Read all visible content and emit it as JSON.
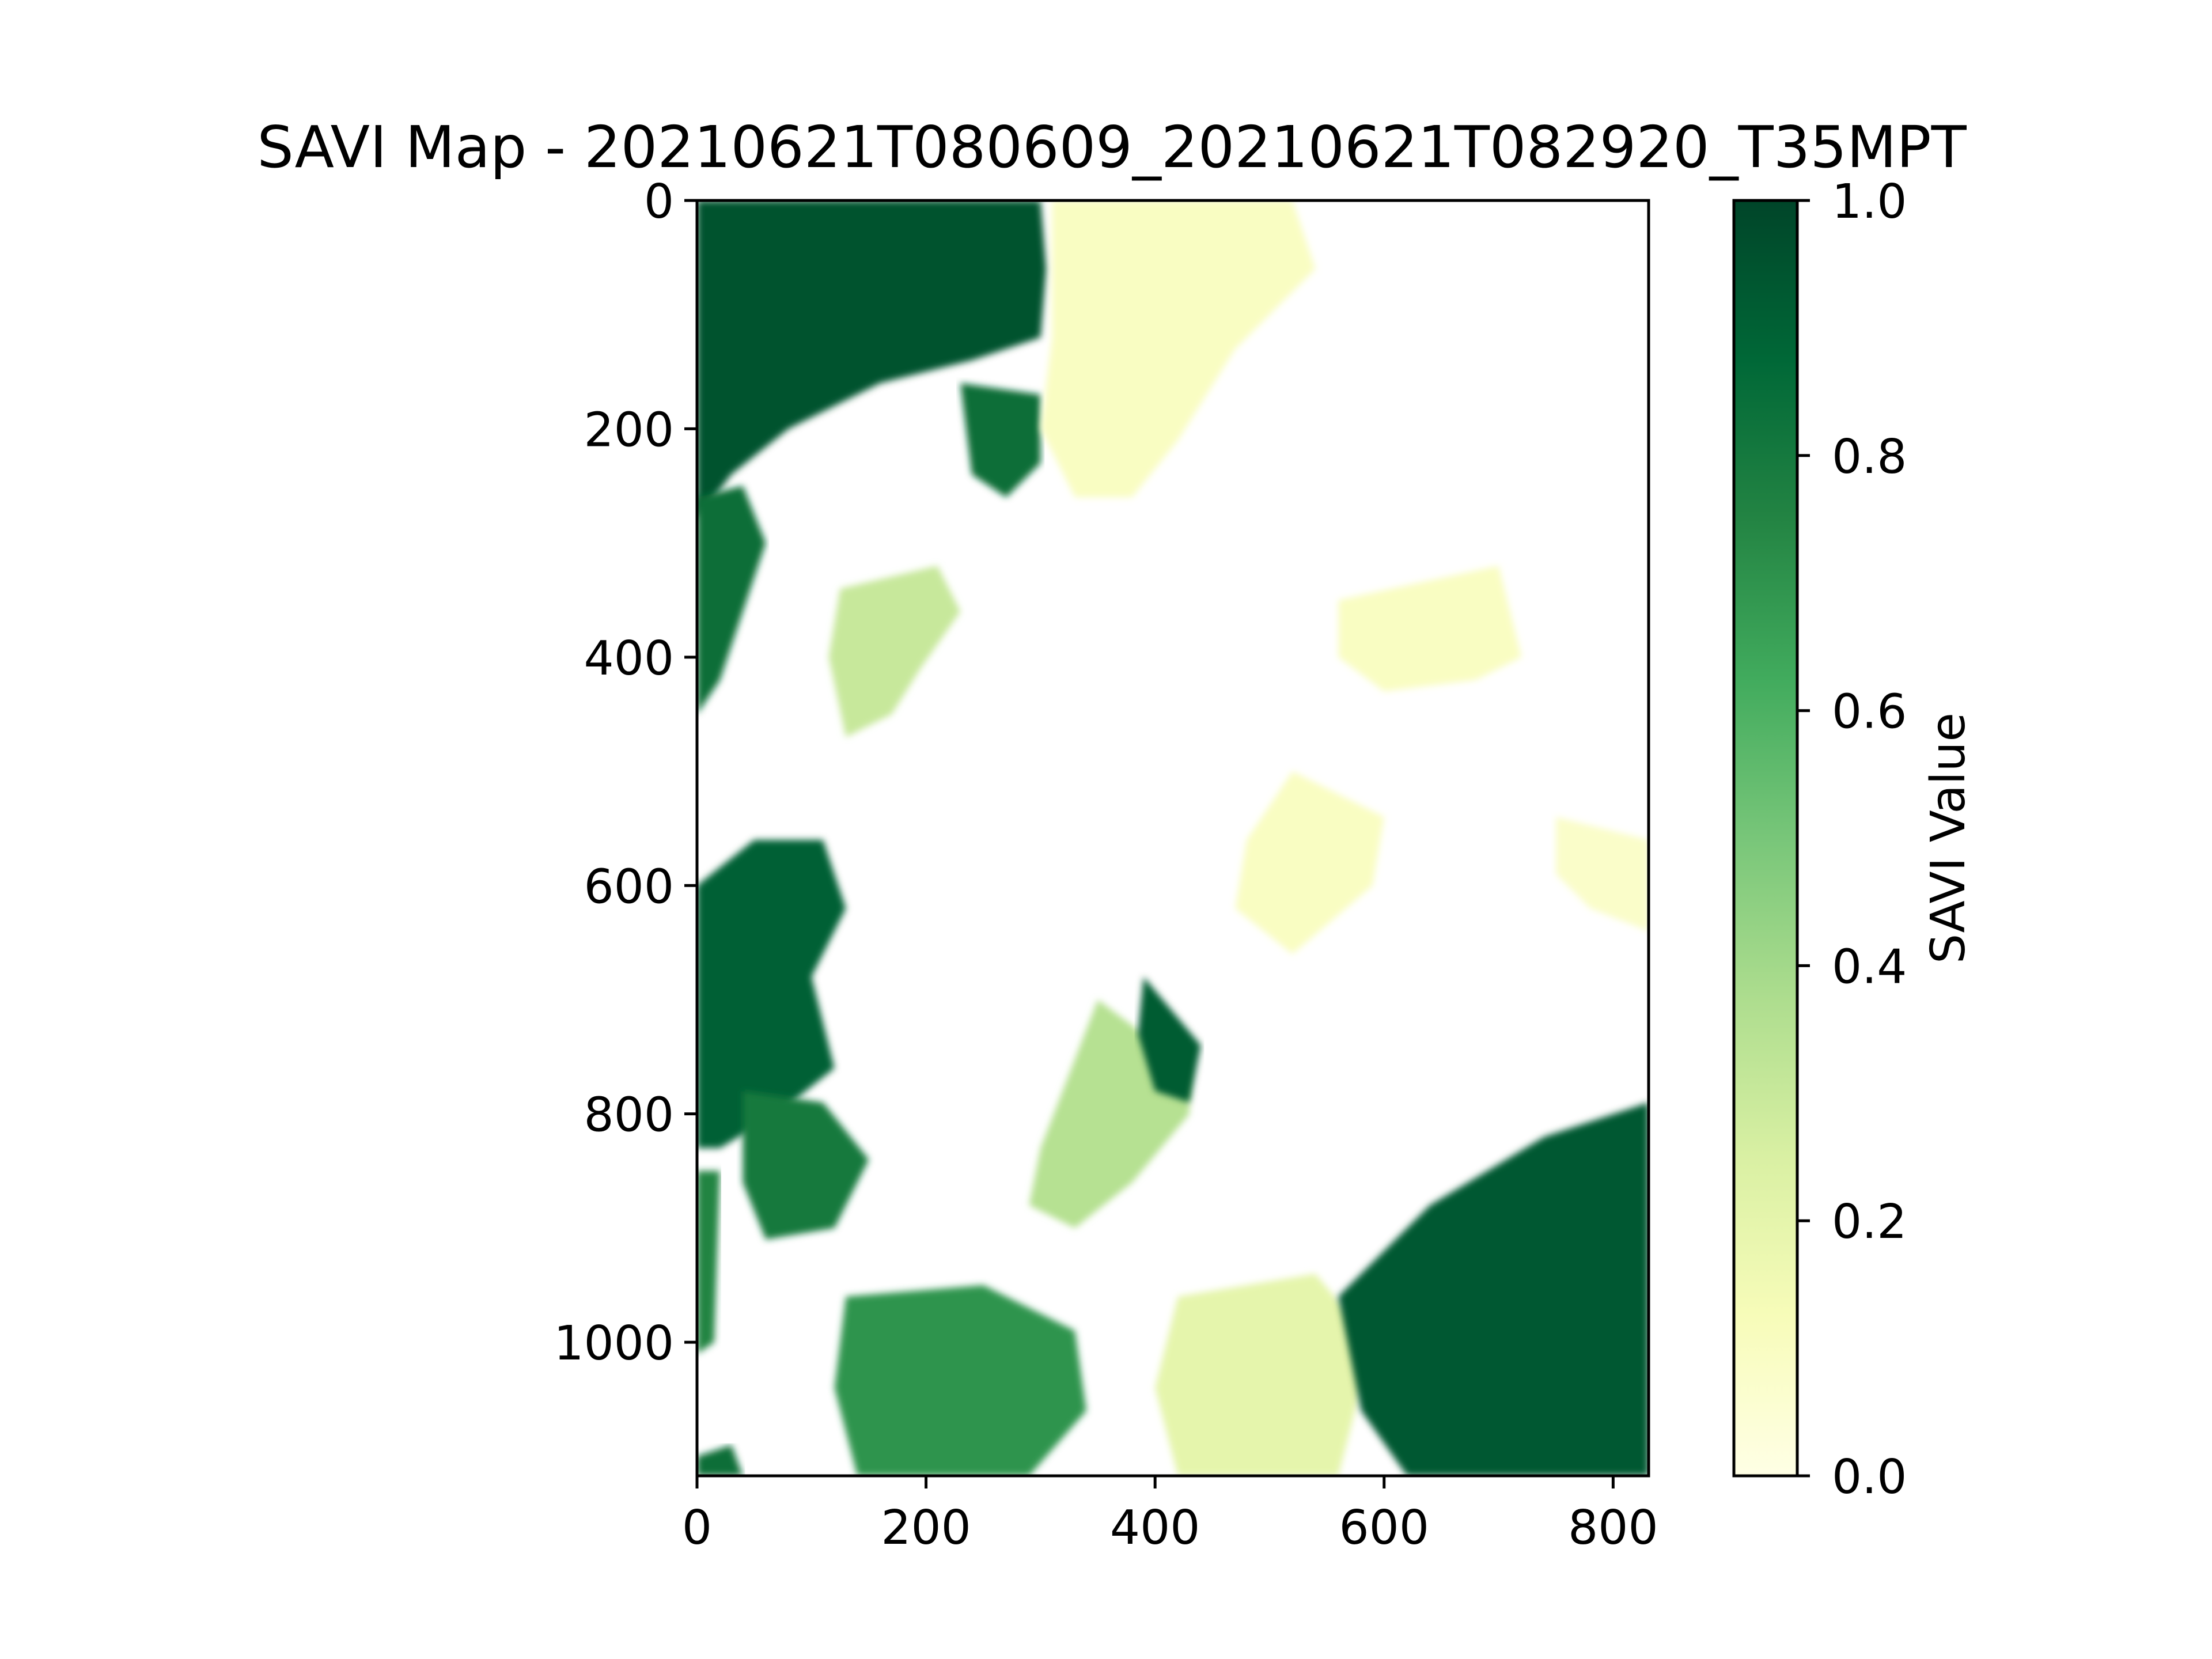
{
  "chart_data": {
    "type": "heatmap",
    "title": "SAVI Map - 20210621T080609_20210621T082920_T35MPT",
    "xlabel": "",
    "ylabel": "",
    "x_axis": {
      "range": [
        0,
        831
      ],
      "ticks": [
        0,
        200,
        400,
        600,
        800
      ],
      "tick_labels": [
        "0",
        "200",
        "400",
        "600",
        "800"
      ]
    },
    "y_axis": {
      "range": [
        0,
        1117
      ],
      "inverted": true,
      "ticks": [
        0,
        200,
        400,
        600,
        800,
        1000
      ],
      "tick_labels": [
        "0",
        "200",
        "400",
        "600",
        "800",
        "1000"
      ]
    },
    "colorbar": {
      "label": "SAVI Value",
      "range": [
        0.0,
        1.0
      ],
      "ticks": [
        0.0,
        0.2,
        0.4,
        0.6,
        0.8,
        1.0
      ],
      "tick_labels": [
        "0.0",
        "0.2",
        "0.4",
        "0.6",
        "0.8",
        "1.0"
      ],
      "colormap": "YlGn",
      "colors": [
        "#ffffe5",
        "#f7fcb9",
        "#d9f0a3",
        "#addd8e",
        "#78c679",
        "#41ab5d",
        "#238443",
        "#006837",
        "#004529"
      ]
    },
    "grid": false,
    "blob_note": "regions are approximate masses of SAVI value in data coordinates (x: column, y: row)",
    "regions": [
      {
        "value": 0.95,
        "points": [
          [
            0,
            0
          ],
          [
            300,
            0
          ],
          [
            305,
            60
          ],
          [
            300,
            120
          ],
          [
            240,
            140
          ],
          [
            160,
            160
          ],
          [
            80,
            200
          ],
          [
            30,
            240
          ],
          [
            0,
            280
          ]
        ]
      },
      {
        "value": 0.85,
        "points": [
          [
            0,
            260
          ],
          [
            40,
            250
          ],
          [
            60,
            300
          ],
          [
            40,
            360
          ],
          [
            20,
            420
          ],
          [
            0,
            450
          ]
        ]
      },
      {
        "value": 0.9,
        "points": [
          [
            0,
            600
          ],
          [
            50,
            560
          ],
          [
            110,
            560
          ],
          [
            130,
            620
          ],
          [
            100,
            680
          ],
          [
            120,
            760
          ],
          [
            70,
            800
          ],
          [
            20,
            830
          ],
          [
            0,
            830
          ]
        ]
      },
      {
        "value": 0.8,
        "points": [
          [
            40,
            780
          ],
          [
            110,
            790
          ],
          [
            150,
            840
          ],
          [
            120,
            900
          ],
          [
            60,
            910
          ],
          [
            40,
            860
          ]
        ]
      },
      {
        "value": 0.85,
        "points": [
          [
            230,
            160
          ],
          [
            300,
            170
          ],
          [
            300,
            230
          ],
          [
            270,
            260
          ],
          [
            240,
            240
          ]
        ]
      },
      {
        "value": 0.3,
        "points": [
          [
            125,
            340
          ],
          [
            210,
            320
          ],
          [
            230,
            360
          ],
          [
            195,
            410
          ],
          [
            170,
            450
          ],
          [
            130,
            470
          ],
          [
            115,
            400
          ]
        ]
      },
      {
        "value": 0.1,
        "points": [
          [
            310,
            0
          ],
          [
            520,
            0
          ],
          [
            540,
            60
          ],
          [
            470,
            130
          ],
          [
            420,
            210
          ],
          [
            380,
            260
          ],
          [
            330,
            260
          ],
          [
            300,
            200
          ],
          [
            310,
            120
          ]
        ]
      },
      {
        "value": 0.1,
        "points": [
          [
            560,
            350
          ],
          [
            700,
            320
          ],
          [
            720,
            400
          ],
          [
            680,
            420
          ],
          [
            600,
            430
          ],
          [
            560,
            400
          ]
        ]
      },
      {
        "value": 0.1,
        "points": [
          [
            520,
            500
          ],
          [
            600,
            540
          ],
          [
            590,
            600
          ],
          [
            520,
            660
          ],
          [
            470,
            620
          ],
          [
            480,
            560
          ]
        ]
      },
      {
        "value": 0.35,
        "points": [
          [
            350,
            700
          ],
          [
            430,
            760
          ],
          [
            430,
            800
          ],
          [
            380,
            860
          ],
          [
            330,
            900
          ],
          [
            290,
            880
          ],
          [
            300,
            830
          ]
        ]
      },
      {
        "value": 0.92,
        "points": [
          [
            390,
            680
          ],
          [
            440,
            740
          ],
          [
            430,
            790
          ],
          [
            400,
            780
          ],
          [
            385,
            730
          ]
        ]
      },
      {
        "value": 0.7,
        "points": [
          [
            130,
            960
          ],
          [
            250,
            950
          ],
          [
            330,
            990
          ],
          [
            340,
            1060
          ],
          [
            290,
            1117
          ],
          [
            140,
            1117
          ],
          [
            120,
            1040
          ]
        ]
      },
      {
        "value": 0.2,
        "points": [
          [
            420,
            960
          ],
          [
            540,
            940
          ],
          [
            590,
            1000
          ],
          [
            560,
            1117
          ],
          [
            420,
            1117
          ],
          [
            400,
            1040
          ]
        ]
      },
      {
        "value": 0.93,
        "points": [
          [
            560,
            960
          ],
          [
            640,
            880
          ],
          [
            740,
            820
          ],
          [
            831,
            790
          ],
          [
            831,
            1117
          ],
          [
            620,
            1117
          ],
          [
            580,
            1060
          ]
        ]
      },
      {
        "value": 0.85,
        "points": [
          [
            0,
            1100
          ],
          [
            30,
            1090
          ],
          [
            40,
            1117
          ],
          [
            0,
            1117
          ]
        ]
      },
      {
        "value": 0.75,
        "points": [
          [
            0,
            850
          ],
          [
            20,
            850
          ],
          [
            15,
            1000
          ],
          [
            0,
            1010
          ]
        ]
      },
      {
        "value": 0.08,
        "points": [
          [
            750,
            540
          ],
          [
            831,
            560
          ],
          [
            831,
            640
          ],
          [
            780,
            620
          ],
          [
            750,
            590
          ]
        ]
      }
    ]
  }
}
